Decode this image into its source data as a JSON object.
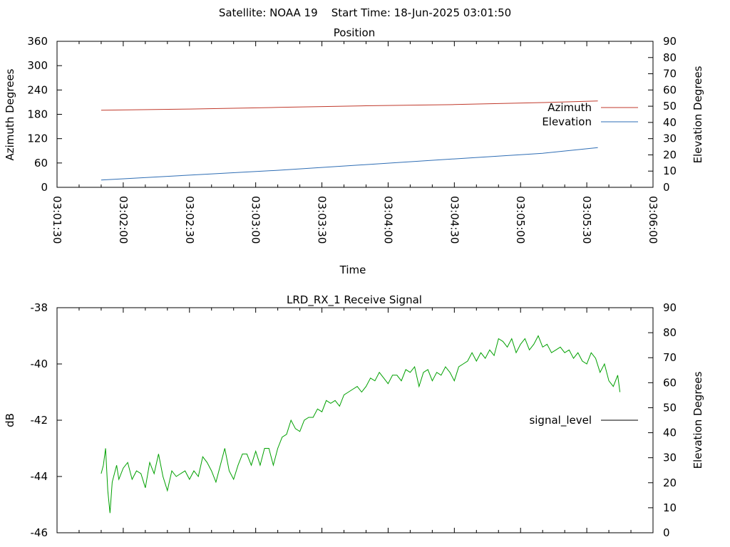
{
  "figure_title": "Satellite: NOAA 19    Start Time: 18-Jun-2025 03:01:50",
  "chart_data": [
    {
      "type": "line",
      "title": "Position",
      "xlabel": "Time",
      "ylabel": "Azimuth Degrees",
      "y2label": "Elevation Degrees",
      "xlim": [
        0,
        250
      ],
      "ylim": [
        0,
        360
      ],
      "y2lim": [
        0,
        90
      ],
      "xticks": [
        {
          "t": 0,
          "label": "03:01:30"
        },
        {
          "t": 30,
          "label": "03:02:00"
        },
        {
          "t": 60,
          "label": "03:02:30"
        },
        {
          "t": 90,
          "label": "03:03:00"
        },
        {
          "t": 120,
          "label": "03:03:30"
        },
        {
          "t": 150,
          "label": "03:04:00"
        },
        {
          "t": 180,
          "label": "03:04:30"
        },
        {
          "t": 210,
          "label": "03:05:00"
        },
        {
          "t": 240,
          "label": "03:05:30"
        },
        {
          "t": 270,
          "label": "03:06:00"
        }
      ],
      "yticks": [
        0,
        60,
        120,
        180,
        240,
        300,
        360
      ],
      "y2ticks": [
        0,
        10,
        20,
        30,
        40,
        50,
        60,
        70,
        80,
        90
      ],
      "legend_position": "right",
      "series": [
        {
          "name": "Azimuth",
          "axis": "y",
          "color": "#c0392b",
          "x": [
            20,
            60,
            100,
            140,
            180,
            220,
            245
          ],
          "y": [
            190,
            193,
            197,
            201,
            204,
            209,
            213
          ]
        },
        {
          "name": "Elevation",
          "axis": "y2",
          "color": "#2e6db4",
          "x": [
            20,
            60,
            100,
            140,
            180,
            220,
            245
          ],
          "y": [
            4.5,
            7.5,
            10.5,
            14,
            17.5,
            21,
            24.5
          ]
        }
      ]
    },
    {
      "type": "line",
      "title": "LRD_RX_1 Receive Signal",
      "ylabel": "dB",
      "y2label": "Elevation Degrees",
      "ylim": [
        -46,
        -38
      ],
      "y2lim": [
        0,
        90
      ],
      "yticks": [
        -46,
        -44,
        -42,
        -40,
        -38
      ],
      "y2ticks": [
        0,
        10,
        20,
        30,
        40,
        50,
        60,
        70,
        80,
        90
      ],
      "legend_position": "right",
      "series": [
        {
          "name": "signal_level",
          "color": "#00a000",
          "x": [
            0,
            1,
            2,
            3,
            4,
            5,
            6,
            7,
            8,
            10,
            12,
            14,
            16,
            18,
            20,
            22,
            24,
            26,
            28,
            30,
            32,
            34,
            36,
            38,
            40,
            42,
            44,
            46,
            48,
            50,
            52,
            54,
            56,
            58,
            60,
            62,
            64,
            66,
            68,
            70,
            72,
            74,
            76,
            78,
            80,
            82,
            84,
            86,
            88,
            90,
            92,
            94,
            96,
            98,
            100,
            102,
            104,
            106,
            108,
            110,
            112,
            114,
            116,
            118,
            120,
            122,
            124,
            126,
            128,
            130,
            132,
            134,
            136,
            138,
            140,
            142,
            144,
            146,
            148,
            150,
            152,
            154,
            156,
            158,
            160,
            162,
            164,
            166,
            168,
            170,
            172,
            174,
            176,
            178,
            180,
            182,
            184,
            186,
            188,
            190,
            192,
            194,
            196,
            198,
            200,
            202,
            204,
            206,
            208,
            210,
            212,
            214,
            216,
            218,
            220,
            222,
            224,
            226,
            228,
            230,
            232,
            234,
            235
          ],
          "y": [
            -43.9,
            -43.6,
            -43.0,
            -44.5,
            -45.3,
            -44.2,
            -43.9,
            -43.6,
            -44.1,
            -43.7,
            -43.5,
            -44.1,
            -43.8,
            -43.9,
            -44.4,
            -43.5,
            -43.9,
            -43.2,
            -44.0,
            -44.5,
            -43.8,
            -44.0,
            -43.9,
            -43.8,
            -44.1,
            -43.8,
            -44.0,
            -43.3,
            -43.5,
            -43.8,
            -44.2,
            -43.6,
            -43.0,
            -43.8,
            -44.1,
            -43.6,
            -43.2,
            -43.2,
            -43.6,
            -43.1,
            -43.6,
            -43.0,
            -43.0,
            -43.6,
            -43.0,
            -42.6,
            -42.5,
            -42.0,
            -42.3,
            -42.4,
            -42.0,
            -41.9,
            -41.9,
            -41.6,
            -41.7,
            -41.3,
            -41.4,
            -41.3,
            -41.5,
            -41.1,
            -41.0,
            -40.9,
            -40.8,
            -41.0,
            -40.8,
            -40.5,
            -40.6,
            -40.3,
            -40.5,
            -40.7,
            -40.4,
            -40.4,
            -40.6,
            -40.2,
            -40.3,
            -40.1,
            -40.8,
            -40.3,
            -40.2,
            -40.6,
            -40.3,
            -40.4,
            -40.1,
            -40.3,
            -40.6,
            -40.1,
            -40.0,
            -39.9,
            -39.6,
            -39.9,
            -39.6,
            -39.8,
            -39.5,
            -39.7,
            -39.1,
            -39.2,
            -39.4,
            -39.1,
            -39.6,
            -39.3,
            -39.1,
            -39.5,
            -39.3,
            -39.0,
            -39.4,
            -39.3,
            -39.6,
            -39.5,
            -39.4,
            -39.6,
            -39.5,
            -39.8,
            -39.6,
            -39.9,
            -40.0,
            -39.6,
            -39.8,
            -40.3,
            -40.0,
            -40.6,
            -40.8,
            -40.4,
            -41.0
          ]
        }
      ]
    }
  ]
}
